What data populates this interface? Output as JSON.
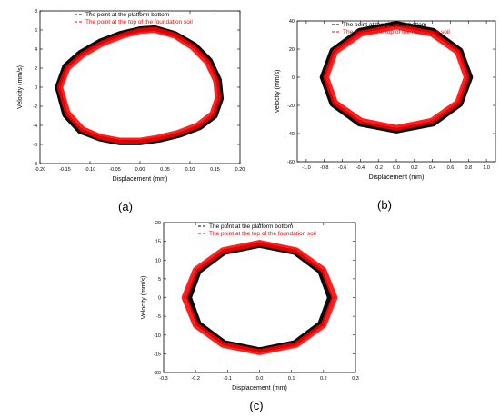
{
  "chart_data": [
    {
      "type": "scatter",
      "panel_label": "(a)",
      "xlabel": "Displacement (mm)",
      "ylabel": "Velocity (mm/s)",
      "xlim": [
        -0.2,
        0.2
      ],
      "ylim": [
        -8,
        8
      ],
      "xticks": [
        "-0.20",
        "-0.15",
        "-0.10",
        "-0.05",
        "0.00",
        "0.05",
        "0.10",
        "0.15",
        "0.20"
      ],
      "yticks": [
        "-8",
        "-6",
        "-4",
        "-2",
        "0",
        "2",
        "4",
        "6",
        "8"
      ],
      "grid": false,
      "legend_position": "top",
      "series": [
        {
          "name": "The point at the platform bottom",
          "color": "#000000",
          "x": [
            -0.165,
            -0.15,
            -0.12,
            -0.08,
            -0.04,
            0.0,
            0.03,
            0.07,
            0.11,
            0.14,
            0.158,
            0.162,
            0.15,
            0.12,
            0.08,
            0.04,
            0.0,
            -0.04,
            -0.08,
            -0.12,
            -0.15,
            -0.165
          ],
          "y": [
            0.0,
            2.2,
            3.6,
            4.8,
            5.6,
            6.1,
            6.2,
            5.6,
            4.4,
            2.8,
            0.8,
            -1.2,
            -3.0,
            -4.2,
            -5.0,
            -5.5,
            -5.8,
            -5.8,
            -5.4,
            -4.6,
            -2.9,
            0.0
          ]
        },
        {
          "name": "The point at the top of the foundation soil",
          "color": "#ff0000",
          "x": [
            -0.16,
            -0.145,
            -0.115,
            -0.075,
            -0.035,
            0.0,
            0.03,
            0.07,
            0.105,
            0.135,
            0.152,
            0.156,
            0.145,
            0.115,
            0.075,
            0.035,
            0.0,
            -0.04,
            -0.08,
            -0.115,
            -0.145,
            -0.16
          ],
          "y": [
            0.0,
            2.0,
            3.4,
            4.6,
            5.4,
            5.9,
            6.0,
            5.4,
            4.2,
            2.6,
            0.7,
            -1.1,
            -2.8,
            -4.0,
            -4.8,
            -5.3,
            -5.6,
            -5.6,
            -5.2,
            -4.4,
            -2.7,
            0.0
          ]
        }
      ]
    },
    {
      "type": "scatter",
      "panel_label": "(b)",
      "xlabel": "Displacement (mm)",
      "ylabel": "Velocity (mm/s)",
      "xlim": [
        -1.1,
        1.1
      ],
      "ylim": [
        -60,
        40
      ],
      "xticks": [
        "-1.0",
        "-0.8",
        "-0.6",
        "-0.4",
        "-0.2",
        "0.0",
        "0.2",
        "0.4",
        "0.6",
        "0.8",
        "1.0"
      ],
      "yticks": [
        "-60",
        "-40",
        "-20",
        "0",
        "20",
        "40"
      ],
      "grid": false,
      "legend_position": "top",
      "series": [
        {
          "name": "The point at the platform bottom",
          "color": "#000000",
          "x": [
            -0.82,
            -0.71,
            -0.41,
            0.0,
            0.41,
            0.71,
            0.82,
            0.71,
            0.41,
            0.0,
            -0.41,
            -0.71,
            -0.82
          ],
          "y": [
            0,
            19,
            33,
            38,
            33,
            19,
            0,
            -19,
            -33,
            -38,
            -33,
            -19,
            0
          ]
        },
        {
          "name": "The point at the top of the foundation soil",
          "color": "#ff0000",
          "x": [
            -0.78,
            -0.68,
            -0.39,
            0.0,
            0.39,
            0.68,
            0.78,
            0.68,
            0.39,
            0.0,
            -0.39,
            -0.68,
            -0.78
          ],
          "y": [
            0,
            18,
            31,
            36,
            31,
            18,
            0,
            -18,
            -31,
            -36,
            -31,
            -18,
            0
          ]
        }
      ]
    },
    {
      "type": "scatter",
      "panel_label": "(c)",
      "xlabel": "Displacement (mm)",
      "ylabel": "Velocity (mm/s)",
      "xlim": [
        -0.3,
        0.3
      ],
      "ylim": [
        -20,
        20
      ],
      "xticks": [
        "-0.3",
        "-0.2",
        "-0.1",
        "0.0",
        "0.1",
        "0.2",
        "0.3"
      ],
      "yticks": [
        "-20",
        "-15",
        "-10",
        "-5",
        "0",
        "5",
        "10",
        "15",
        "20"
      ],
      "grid": false,
      "legend_position": "top",
      "series": [
        {
          "name": "The point at the platform bottom",
          "color": "#000000",
          "x": [
            -0.22,
            -0.19,
            -0.11,
            0.0,
            0.11,
            0.19,
            0.22,
            0.19,
            0.11,
            0.0,
            -0.11,
            -0.19,
            -0.22
          ],
          "y": [
            0.0,
            7.0,
            12.1,
            14.0,
            12.1,
            7.0,
            0.0,
            -7.0,
            -12.1,
            -14.0,
            -12.1,
            -7.0,
            0.0
          ]
        },
        {
          "name": "The point at the top of the foundation soil",
          "color": "#ff0000",
          "x": [
            -0.235,
            -0.2,
            -0.115,
            0.0,
            0.115,
            0.2,
            0.235,
            0.2,
            0.115,
            0.0,
            -0.115,
            -0.2,
            -0.235
          ],
          "y": [
            0.0,
            7.4,
            12.6,
            14.6,
            12.6,
            7.4,
            0.0,
            -7.4,
            -12.6,
            -14.6,
            -12.6,
            -7.4,
            0.0
          ]
        }
      ]
    }
  ]
}
